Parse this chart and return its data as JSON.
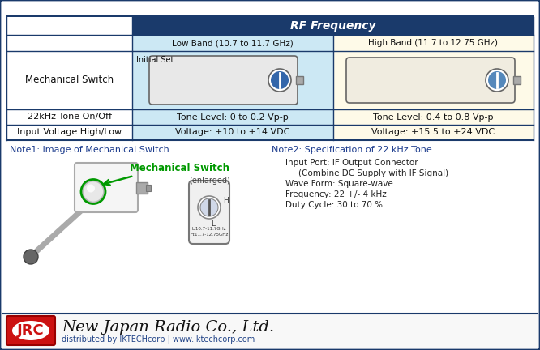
{
  "bg_color": "#ffffff",
  "border_color": "#1a3a6b",
  "table_header_bg": "#1a3a6b",
  "table_header_text": "#ffffff",
  "low_band_bg": "#cce8f4",
  "high_band_bg": "#fefae8",
  "note1_color": "#1a3a8c",
  "note2_color": "#1a3a8c",
  "mech_switch_color": "#009900",
  "title_rf": "RF Frequency",
  "col_low": "Low Band (10.7 to 11.7 GHz)",
  "col_high": "High Band (11.7 to 12.75 GHz)",
  "row1_label": "Mechanical Switch",
  "row1_low_extra": "Initial Set",
  "row2_label": "22kHz Tone On/Off",
  "row2_low": "Tone Level: 0 to 0.2 Vp-p",
  "row2_high": "Tone Level: 0.4 to 0.8 Vp-p",
  "row3_label": "Input Voltage High/Low",
  "row3_low": "Voltage: +10 to +14 VDC",
  "row3_high": "Voltage: +15.5 to +24 VDC",
  "note1_title": "Note1: Image of Mechanical Switch",
  "note1_sublabel": "Mechanical Switch",
  "note1_enlarged": "(enlarged)",
  "note2_title": "Note2: Specification of 22 kHz Tone",
  "note2_line1": "Input Port: IF Output Connector",
  "note2_line2": "(Combine DC Supply with IF Signal)",
  "note2_line3": "Wave Form: Square-wave",
  "note2_line4": "Frequency: 22 +/- 4 kHz",
  "note2_line5": "Duty Cycle: 30 to 70 %",
  "footer_company": "New Japan Radio Co., Ltd.",
  "footer_dist": "distributed by IKTECHcorp | www.iktechcorp.com",
  "jrc_bg": "#cc1111",
  "jrc_text": "JRC"
}
